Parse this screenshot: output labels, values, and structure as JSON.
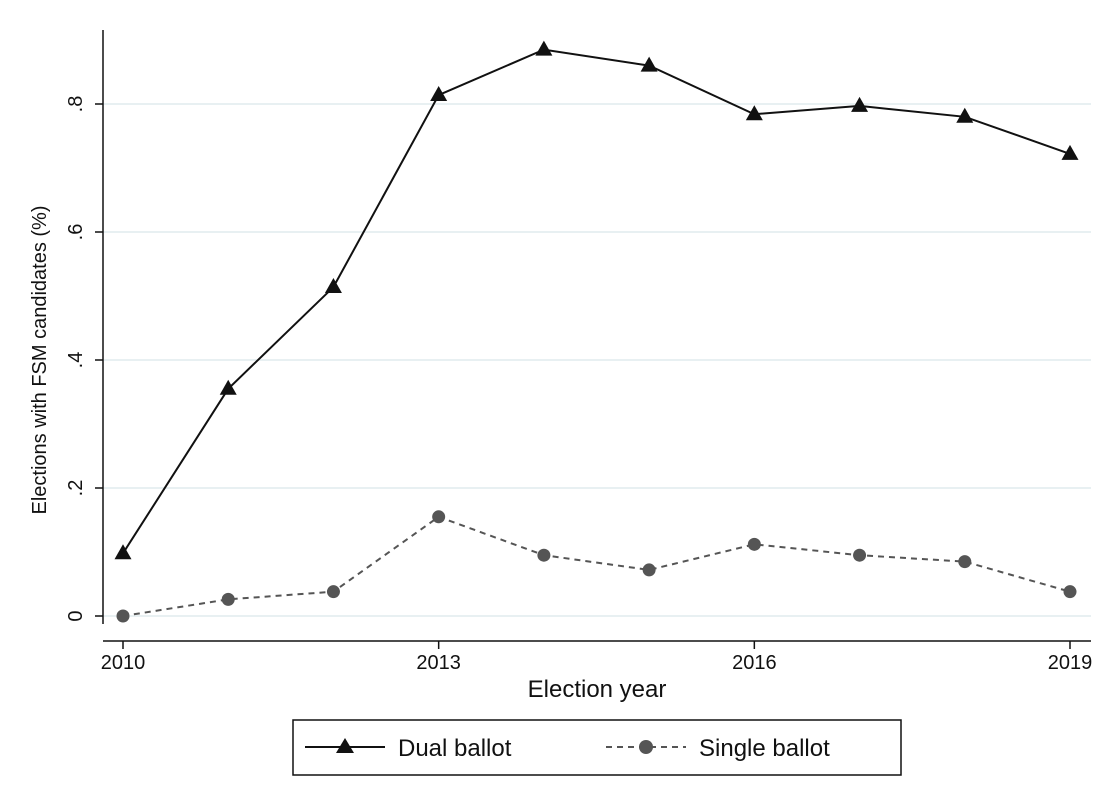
{
  "chart_data": {
    "type": "line",
    "title": "",
    "xlabel": "Election year",
    "ylabel": "Elections with FSM candidates (%)",
    "xlim": [
      2010,
      2019
    ],
    "ylim": [
      0,
      0.9
    ],
    "x_ticks": [
      2010,
      2013,
      2016,
      2019
    ],
    "x_tick_labels": [
      "2010",
      "2013",
      "2016",
      "2019"
    ],
    "y_ticks": [
      0,
      0.2,
      0.4,
      0.6,
      0.8
    ],
    "y_tick_labels": [
      "0",
      ".2",
      ".4",
      ".6",
      ".8"
    ],
    "grid": true,
    "legend_position": "bottom",
    "x": [
      2010,
      2011,
      2012,
      2013,
      2014,
      2015,
      2016,
      2017,
      2018,
      2019
    ],
    "series": [
      {
        "name": "Dual ballot",
        "values": [
          0.098,
          0.355,
          0.514,
          0.814,
          0.885,
          0.86,
          0.784,
          0.797,
          0.78,
          0.722
        ],
        "color": "#111111",
        "line_style": "solid",
        "marker": "triangle"
      },
      {
        "name": "Single ballot",
        "values": [
          0.0,
          0.026,
          0.038,
          0.155,
          0.095,
          0.072,
          0.112,
          0.095,
          0.085,
          0.038
        ],
        "color": "#555555",
        "line_style": "dashed",
        "marker": "circle"
      }
    ],
    "grid_color": "#dbe7ea"
  }
}
